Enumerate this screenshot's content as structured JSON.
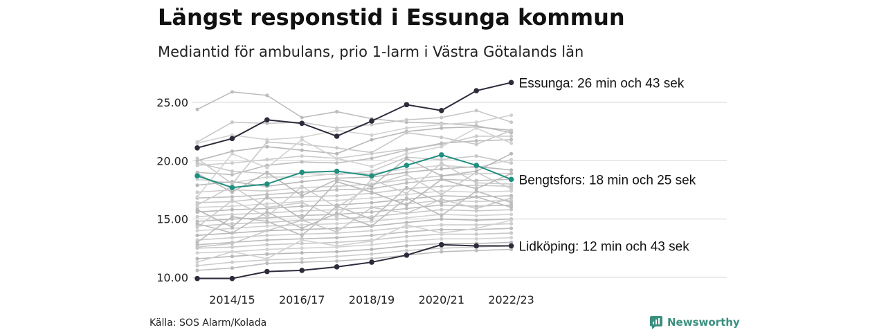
{
  "title": "Längst responstid i Essunga kommun",
  "subtitle": "Mediantid för ambulans, prio 1-larm i Västra Götalands län",
  "source": "Källa: SOS Alarm/Kolada",
  "brand": "Newsworthy",
  "colors": {
    "background_series": "#c4c4c4",
    "highlight_dark": "#2b2b3a",
    "highlight_teal": "#1f8f80",
    "brand": "#3b8f80"
  },
  "chart_data": {
    "type": "line",
    "ylim": [
      9.5,
      26.8
    ],
    "yticks": [
      10,
      15,
      20,
      25
    ],
    "ytick_labels": [
      "10.00",
      "15.00",
      "20.00",
      "25.00"
    ],
    "xtick_labels": [
      "2014/15",
      "2016/17",
      "2018/19",
      "2020/21",
      "2022/23"
    ],
    "x": [
      "2013/14",
      "2014/15",
      "2015/16",
      "2016/17",
      "2017/18",
      "2018/19",
      "2019/20",
      "2020/21",
      "2021/22",
      "2022/23"
    ],
    "grid": true,
    "highlighted": [
      {
        "label": "Essunga: 26 min och 43 sek",
        "color": "dark",
        "values": [
          21.1,
          21.9,
          23.5,
          23.2,
          22.1,
          23.4,
          24.8,
          24.3,
          26.0,
          26.7
        ]
      },
      {
        "label": "Bengtsfors: 18 min och 25 sek",
        "color": "teal",
        "values": [
          18.7,
          17.7,
          18.0,
          19.0,
          19.1,
          18.7,
          19.6,
          20.5,
          19.6,
          18.4
        ]
      },
      {
        "label": "Lidköping: 12 min och 43 sek",
        "color": "dark",
        "values": [
          9.9,
          9.9,
          10.5,
          10.6,
          10.9,
          11.3,
          11.9,
          12.8,
          12.7,
          12.7
        ]
      }
    ],
    "background_series": [
      [
        24.4,
        25.9,
        25.6,
        23.7,
        24.2,
        23.6,
        23.3,
        23.2,
        23.0,
        22.4
      ],
      [
        21.6,
        23.3,
        23.2,
        23.3,
        22.8,
        23.1,
        23.5,
        23.7,
        24.3,
        23.3
      ],
      [
        21.5,
        22.2,
        21.8,
        22.0,
        22.6,
        22.2,
        22.8,
        23.1,
        23.3,
        23.9
      ],
      [
        20.0,
        20.8,
        21.2,
        20.9,
        20.6,
        21.8,
        22.5,
        22.8,
        22.9,
        22.6
      ],
      [
        19.6,
        19.8,
        20.1,
        20.4,
        20.2,
        20.6,
        21.0,
        21.4,
        22.1,
        22.1
      ],
      [
        19.0,
        18.8,
        19.6,
        19.9,
        19.8,
        20.2,
        20.9,
        21.5,
        21.7,
        21.8
      ],
      [
        19.8,
        19.1,
        18.9,
        18.9,
        18.8,
        19.1,
        20.3,
        20.1,
        20.4,
        19.8
      ],
      [
        18.4,
        18.1,
        18.6,
        18.6,
        18.9,
        18.9,
        19.3,
        19.6,
        19.4,
        20.1
      ],
      [
        17.9,
        18.2,
        17.8,
        18.2,
        18.5,
        18.6,
        19.0,
        19.3,
        19.5,
        19.2
      ],
      [
        17.3,
        17.5,
        17.4,
        17.7,
        17.8,
        18.0,
        18.4,
        18.7,
        18.9,
        18.9
      ],
      [
        16.8,
        16.9,
        17.1,
        17.3,
        17.5,
        17.6,
        18.1,
        18.4,
        18.3,
        18.4
      ],
      [
        16.4,
        16.5,
        16.8,
        16.9,
        17.0,
        17.2,
        17.6,
        17.8,
        17.9,
        17.8
      ],
      [
        16.0,
        16.1,
        16.3,
        16.5,
        16.6,
        16.8,
        17.1,
        17.4,
        17.3,
        17.4
      ],
      [
        15.6,
        15.8,
        15.9,
        16.1,
        16.2,
        16.4,
        16.7,
        17.0,
        16.9,
        17.0
      ],
      [
        15.2,
        15.4,
        15.5,
        15.7,
        15.8,
        16.0,
        16.3,
        16.6,
        16.5,
        16.6
      ],
      [
        14.8,
        15.0,
        15.1,
        15.3,
        15.4,
        15.6,
        15.9,
        16.2,
        16.1,
        16.2
      ],
      [
        14.4,
        14.6,
        14.7,
        14.9,
        15.0,
        15.2,
        15.5,
        15.8,
        15.7,
        15.8
      ],
      [
        14.0,
        14.2,
        14.4,
        14.5,
        14.6,
        14.8,
        15.1,
        15.4,
        15.3,
        15.4
      ],
      [
        13.6,
        13.8,
        14.0,
        14.1,
        14.2,
        14.4,
        14.7,
        15.0,
        14.9,
        15.0
      ],
      [
        13.2,
        13.4,
        13.6,
        13.7,
        13.8,
        14.0,
        14.3,
        14.5,
        14.5,
        14.6
      ],
      [
        12.8,
        13.0,
        13.2,
        13.3,
        13.4,
        13.6,
        13.9,
        14.1,
        14.1,
        14.2
      ],
      [
        12.5,
        12.6,
        12.8,
        12.9,
        13.0,
        13.2,
        13.5,
        13.7,
        13.7,
        13.8
      ],
      [
        12.1,
        12.2,
        12.4,
        12.5,
        12.6,
        12.8,
        13.1,
        13.3,
        13.3,
        13.4
      ],
      [
        11.6,
        11.8,
        12.0,
        12.1,
        12.2,
        12.4,
        12.7,
        12.9,
        12.9,
        13.0
      ],
      [
        11.0,
        11.3,
        11.5,
        11.6,
        11.8,
        12.0,
        12.3,
        12.5,
        12.6,
        12.7
      ],
      [
        10.6,
        10.8,
        11.2,
        11.3,
        11.4,
        11.6,
        11.9,
        12.2,
        12.3,
        12.4
      ],
      [
        20.2,
        18.0,
        21.6,
        21.4,
        21.1,
        20.7,
        22.4,
        22.0,
        21.4,
        22.6
      ],
      [
        16.9,
        20.6,
        19.4,
        21.8,
        20.2,
        19.5,
        20.6,
        21.2,
        22.8,
        21.5
      ],
      [
        15.8,
        14.3,
        16.9,
        15.0,
        18.2,
        17.3,
        16.2,
        18.4,
        17.6,
        18.9
      ],
      [
        14.3,
        16.6,
        15.2,
        17.8,
        16.0,
        17.9,
        18.8,
        17.1,
        19.0,
        17.6
      ],
      [
        13.0,
        15.2,
        14.8,
        13.6,
        16.1,
        15.0,
        17.7,
        16.4,
        16.9,
        16.0
      ],
      [
        12.6,
        12.9,
        14.0,
        14.9,
        13.9,
        16.0,
        15.5,
        16.7,
        15.9,
        16.8
      ],
      [
        11.3,
        12.2,
        11.6,
        13.2,
        12.7,
        13.1,
        14.5,
        13.8,
        14.2,
        14.9
      ],
      [
        18.9,
        17.3,
        19.0,
        17.0,
        18.4,
        17.8,
        20.2,
        18.7,
        19.1,
        20.6
      ],
      [
        16.2,
        17.8,
        16.0,
        16.4,
        15.2,
        18.4,
        17.2,
        19.8,
        18.1,
        18.0
      ],
      [
        14.6,
        13.8,
        15.6,
        14.2,
        15.5,
        14.4,
        16.8,
        15.3,
        17.4,
        16.4
      ]
    ]
  }
}
